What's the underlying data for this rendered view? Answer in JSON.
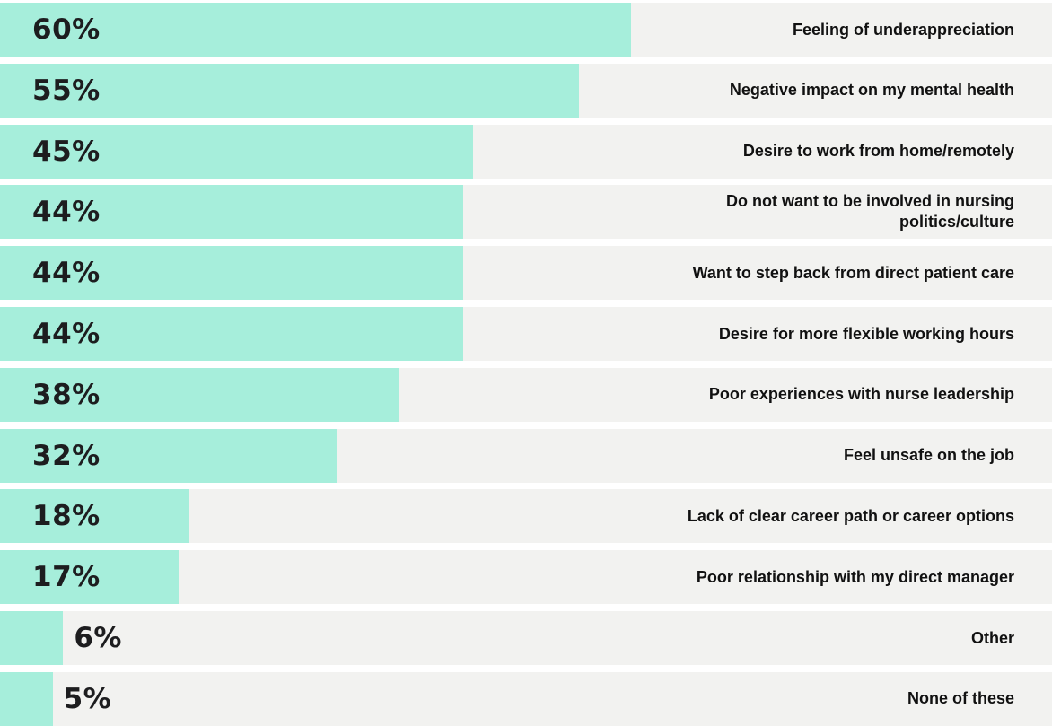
{
  "chart_data": {
    "type": "bar",
    "orientation": "horizontal",
    "categories": [
      "Feeling of underappreciation",
      "Negative impact on my mental health",
      "Desire to work from home/remotely",
      "Do not want to be involved in nursing politics/culture",
      "Want to step back from direct patient care",
      "Desire for more flexible working hours",
      "Poor experiences with nurse leadership",
      "Feel unsafe on the job",
      "Lack of clear career path or career options",
      "Poor relationship with my direct manager",
      "Other",
      "None of these"
    ],
    "values": [
      60,
      55,
      45,
      44,
      44,
      44,
      38,
      32,
      18,
      17,
      6,
      5
    ],
    "value_labels": [
      "60%",
      "55%",
      "45%",
      "44%",
      "44%",
      "44%",
      "38%",
      "32%",
      "18%",
      "17%",
      "6%",
      "5%"
    ],
    "xlim": [
      0,
      100
    ],
    "unit": "%",
    "grid": false,
    "legend": "none",
    "colors": {
      "bar": "#a6eedb",
      "track": "#f2f2f0",
      "value_text": "#1d1d1f",
      "label_text": "#111111"
    }
  }
}
